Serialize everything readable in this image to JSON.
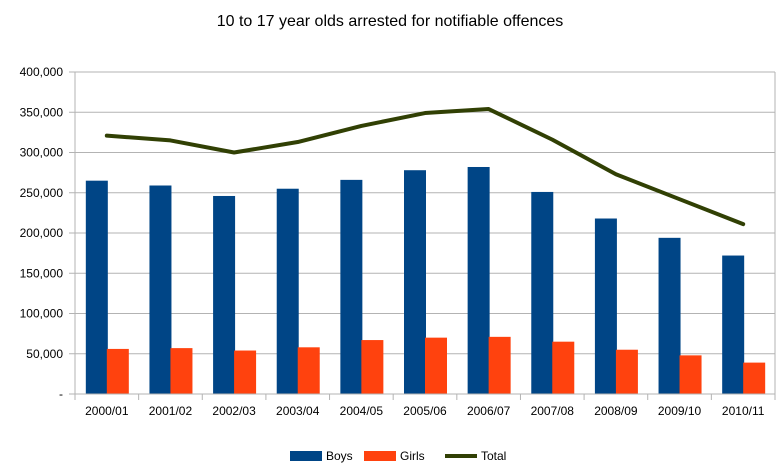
{
  "chart_data": {
    "type": "bar",
    "title": "10 to 17 year olds arrested for notifiable offences",
    "categories": [
      "2000/01",
      "2001/02",
      "2002/03",
      "2003/04",
      "2004/05",
      "2005/06",
      "2006/07",
      "2007/08",
      "2008/09",
      "2009/10",
      "2010/11"
    ],
    "series": [
      {
        "name": "Boys",
        "type": "bar",
        "color": "#004586",
        "values": [
          265000,
          259000,
          246000,
          255000,
          266000,
          278000,
          282000,
          251000,
          218000,
          194000,
          172000
        ]
      },
      {
        "name": "Girls",
        "type": "bar",
        "color": "#ff420e",
        "values": [
          56000,
          57000,
          54000,
          58000,
          67000,
          70000,
          71000,
          65000,
          55000,
          48000,
          39000
        ]
      },
      {
        "name": "Total",
        "type": "line",
        "color": "#314004",
        "values": [
          321000,
          315000,
          300000,
          313000,
          333000,
          349000,
          354000,
          316000,
          273000,
          242000,
          211000
        ]
      }
    ],
    "ylim": [
      0,
      400000
    ],
    "yticks": [
      "-",
      "50,000",
      "100,000",
      "150,000",
      "200,000",
      "250,000",
      "300,000",
      "350,000",
      "400,000"
    ],
    "grid": true,
    "legend": "bottom"
  }
}
